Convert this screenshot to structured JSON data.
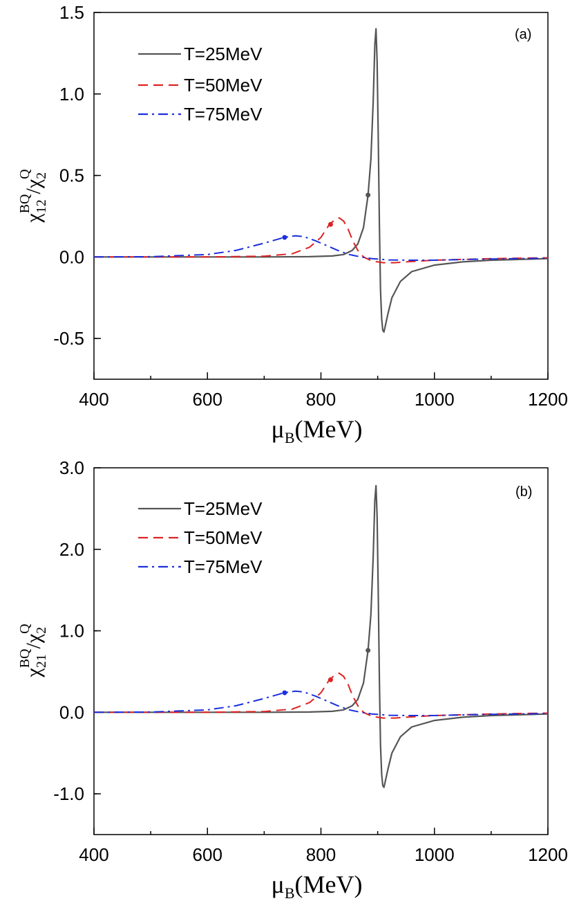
{
  "chart_data": [
    {
      "type": "line",
      "panel_label": "(a)",
      "xlabel": "μB(MeV)",
      "xlabel_main": "μ",
      "xlabel_sub": "B",
      "xlabel_unit": "(MeV)",
      "ylabel_base_chi": "χ",
      "ylabel_sub": "12",
      "ylabel_sup": "BQ",
      "ylabel_slash": "/",
      "ylabel_den_chi": "χ",
      "ylabel_den_sub": "2",
      "ylabel_den_sup": "Q",
      "xlim": [
        400,
        1200
      ],
      "ylim": [
        -0.75,
        1.5
      ],
      "xticks": [
        400,
        600,
        800,
        1000,
        1200
      ],
      "xtick_labels": [
        "400",
        "600",
        "800",
        "1000",
        "1200"
      ],
      "yticks": [
        -0.5,
        0.0,
        0.5,
        1.0,
        1.5
      ],
      "ytick_labels": [
        "-0.5",
        "0.0",
        "0.5",
        "1.0",
        "1.5"
      ],
      "legend_position": "top-left",
      "series": [
        {
          "name": "T=25MeV",
          "color": "#555555",
          "style": "solid",
          "x": [
            400,
            600,
            700,
            780,
            820,
            840,
            855,
            865,
            875,
            883,
            888,
            892,
            895,
            897,
            899,
            901,
            903,
            905,
            907,
            909,
            911,
            913,
            918,
            925,
            940,
            960,
            1000,
            1050,
            1100,
            1150,
            1200
          ],
          "y": [
            0,
            0,
            0,
            0.002,
            0.006,
            0.015,
            0.04,
            0.08,
            0.18,
            0.38,
            0.6,
            0.95,
            1.3,
            1.4,
            1.2,
            0.75,
            0.2,
            -0.2,
            -0.38,
            -0.45,
            -0.46,
            -0.43,
            -0.35,
            -0.25,
            -0.15,
            -0.09,
            -0.05,
            -0.03,
            -0.02,
            -0.015,
            -0.01
          ],
          "marker": {
            "x": 883,
            "y": 0.38
          }
        },
        {
          "name": "T=50MeV",
          "color": "#dd2222",
          "style": "dashed",
          "x": [
            400,
            600,
            700,
            750,
            780,
            800,
            815,
            825,
            832,
            840,
            848,
            856,
            865,
            875,
            890,
            910,
            930,
            950,
            1000,
            1100,
            1200
          ],
          "y": [
            0,
            0,
            0.005,
            0.02,
            0.06,
            0.12,
            0.2,
            0.23,
            0.24,
            0.22,
            0.17,
            0.1,
            0.04,
            0.0,
            -0.025,
            -0.035,
            -0.035,
            -0.03,
            -0.02,
            -0.01,
            -0.005
          ],
          "marker": {
            "x": 817,
            "y": 0.2
          }
        },
        {
          "name": "T=75MeV",
          "color": "#1a2fdd",
          "style": "dashdot",
          "x": [
            400,
            500,
            600,
            650,
            700,
            735,
            755,
            770,
            790,
            810,
            830,
            850,
            870,
            890,
            920,
            960,
            1000,
            1100,
            1200
          ],
          "y": [
            0,
            0.002,
            0.015,
            0.04,
            0.085,
            0.12,
            0.13,
            0.125,
            0.1,
            0.07,
            0.04,
            0.015,
            0.0,
            -0.01,
            -0.018,
            -0.02,
            -0.02,
            -0.012,
            -0.008
          ],
          "marker": {
            "x": 736,
            "y": 0.12
          }
        }
      ]
    },
    {
      "type": "line",
      "panel_label": "(b)",
      "xlabel": "μB(MeV)",
      "xlabel_main": "μ",
      "xlabel_sub": "B",
      "xlabel_unit": "(MeV)",
      "ylabel_base_chi": "χ",
      "ylabel_sub": "21",
      "ylabel_sup": "BQ",
      "ylabel_slash": "/",
      "ylabel_den_chi": "χ",
      "ylabel_den_sub": "2",
      "ylabel_den_sup": "Q",
      "xlim": [
        400,
        1200
      ],
      "ylim": [
        -1.5,
        3.0
      ],
      "xticks": [
        400,
        600,
        800,
        1000,
        1200
      ],
      "xtick_labels": [
        "400",
        "600",
        "800",
        "1000",
        "1200"
      ],
      "yticks": [
        -1.0,
        0.0,
        1.0,
        2.0,
        3.0
      ],
      "ytick_labels": [
        "-1.0",
        "0.0",
        "1.0",
        "2.0",
        "3.0"
      ],
      "legend_position": "top-left",
      "series": [
        {
          "name": "T=25MeV",
          "color": "#555555",
          "style": "solid",
          "x": [
            400,
            600,
            700,
            780,
            820,
            840,
            855,
            865,
            875,
            883,
            888,
            892,
            895,
            897,
            899,
            901,
            903,
            905,
            907,
            909,
            911,
            913,
            918,
            925,
            940,
            960,
            1000,
            1050,
            1100,
            1150,
            1200
          ],
          "y": [
            0,
            0,
            0,
            0.004,
            0.012,
            0.03,
            0.08,
            0.16,
            0.36,
            0.76,
            1.2,
            1.9,
            2.6,
            2.78,
            2.4,
            1.5,
            0.4,
            -0.4,
            -0.76,
            -0.9,
            -0.92,
            -0.86,
            -0.7,
            -0.5,
            -0.3,
            -0.18,
            -0.1,
            -0.06,
            -0.04,
            -0.03,
            -0.02
          ],
          "marker": {
            "x": 883,
            "y": 0.76
          }
        },
        {
          "name": "T=50MeV",
          "color": "#dd2222",
          "style": "dashed",
          "x": [
            400,
            600,
            700,
            750,
            780,
            800,
            815,
            825,
            832,
            840,
            848,
            856,
            865,
            875,
            890,
            910,
            930,
            950,
            1000,
            1100,
            1200
          ],
          "y": [
            0,
            0,
            0.01,
            0.04,
            0.12,
            0.24,
            0.4,
            0.46,
            0.48,
            0.44,
            0.34,
            0.2,
            0.08,
            0.0,
            -0.05,
            -0.07,
            -0.07,
            -0.06,
            -0.04,
            -0.02,
            -0.01
          ],
          "marker": {
            "x": 817,
            "y": 0.4
          }
        },
        {
          "name": "T=75MeV",
          "color": "#1a2fdd",
          "style": "dashdot",
          "x": [
            400,
            500,
            600,
            650,
            700,
            735,
            755,
            770,
            790,
            810,
            830,
            850,
            870,
            890,
            920,
            960,
            1000,
            1100,
            1200
          ],
          "y": [
            0,
            0.004,
            0.03,
            0.08,
            0.17,
            0.24,
            0.26,
            0.25,
            0.2,
            0.14,
            0.08,
            0.03,
            0.0,
            -0.02,
            -0.036,
            -0.04,
            -0.04,
            -0.024,
            -0.016
          ],
          "marker": {
            "x": 736,
            "y": 0.24
          }
        }
      ]
    }
  ]
}
